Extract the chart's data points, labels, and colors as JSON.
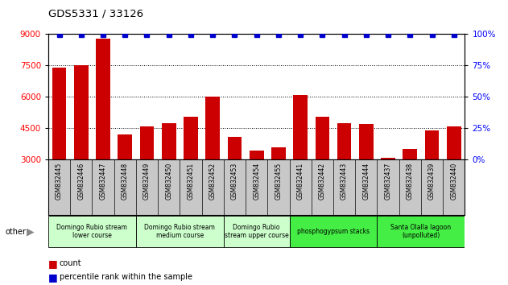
{
  "title": "GDS5331 / 33126",
  "samples": [
    "GSM832445",
    "GSM832446",
    "GSM832447",
    "GSM832448",
    "GSM832449",
    "GSM832450",
    "GSM832451",
    "GSM832452",
    "GSM832453",
    "GSM832454",
    "GSM832455",
    "GSM832441",
    "GSM832442",
    "GSM832443",
    "GSM832444",
    "GSM832437",
    "GSM832438",
    "GSM832439",
    "GSM832440"
  ],
  "counts": [
    7400,
    7500,
    8800,
    4200,
    4600,
    4750,
    5050,
    6000,
    4100,
    3450,
    3600,
    6100,
    5050,
    4750,
    4700,
    3100,
    3500,
    4400,
    4600
  ],
  "groups": [
    {
      "label": "Domingo Rubio stream\nlower course",
      "start": 0,
      "end": 3,
      "color": "#ccffcc"
    },
    {
      "label": "Domingo Rubio stream\nmedium course",
      "start": 4,
      "end": 7,
      "color": "#ccffcc"
    },
    {
      "label": "Domingo Rubio\nstream upper course",
      "start": 8,
      "end": 10,
      "color": "#ccffcc"
    },
    {
      "label": "phosphogypsum stacks",
      "start": 11,
      "end": 14,
      "color": "#44ee44"
    },
    {
      "label": "Santa Olalla lagoon\n(unpolluted)",
      "start": 15,
      "end": 18,
      "color": "#44ee44"
    }
  ],
  "ylim_left": [
    3000,
    9000
  ],
  "yticks_left": [
    3000,
    4500,
    6000,
    7500,
    9000
  ],
  "ylim_right": [
    0,
    100
  ],
  "yticks_right": [
    0,
    25,
    50,
    75,
    100
  ],
  "bar_color": "#cc0000",
  "dot_color": "#0000cc",
  "tick_bg_color": "#c8c8c8",
  "legend_count_color": "#cc0000",
  "legend_pct_color": "#0000cc",
  "gridline_ticks": [
    7500,
    6000,
    4500
  ]
}
